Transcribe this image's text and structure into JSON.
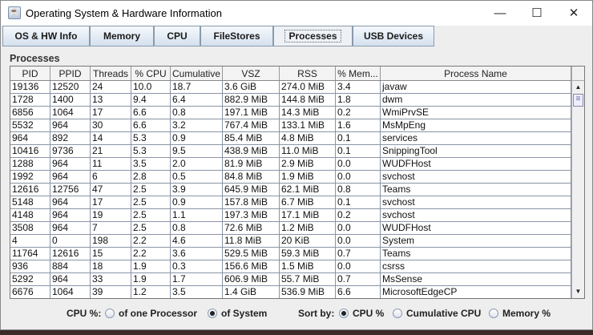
{
  "window": {
    "title": "Operating System & Hardware Information",
    "controls": [
      "—",
      "☐",
      "✕"
    ]
  },
  "tabs": [
    {
      "label": "OS & HW Info"
    },
    {
      "label": "Memory"
    },
    {
      "label": "CPU"
    },
    {
      "label": "FileStores"
    },
    {
      "label": "Processes",
      "selected": true
    },
    {
      "label": "USB Devices"
    }
  ],
  "section_title": "Processes",
  "table": {
    "columns": [
      "PID",
      "PPID",
      "Threads",
      "% CPU",
      "Cumulative",
      "VSZ",
      "RSS",
      "% Mem...",
      "Process Name"
    ],
    "rows": [
      [
        "19136",
        "12520",
        "24",
        "10.0",
        "18.7",
        "3.6 GiB",
        "274.0 MiB",
        "3.4",
        "javaw"
      ],
      [
        "1728",
        "1400",
        "13",
        "9.4",
        "6.4",
        "882.9 MiB",
        "144.8 MiB",
        "1.8",
        "dwm"
      ],
      [
        "6856",
        "1064",
        "17",
        "6.6",
        "0.8",
        "197.1 MiB",
        "14.3 MiB",
        "0.2",
        "WmiPrvSE"
      ],
      [
        "5532",
        "964",
        "30",
        "6.6",
        "3.2",
        "767.4 MiB",
        "133.1 MiB",
        "1.6",
        "MsMpEng"
      ],
      [
        "964",
        "892",
        "14",
        "5.3",
        "0.9",
        "85.4 MiB",
        "4.8 MiB",
        "0.1",
        "services"
      ],
      [
        "10416",
        "9736",
        "21",
        "5.3",
        "9.5",
        "438.9 MiB",
        "11.0 MiB",
        "0.1",
        "SnippingTool"
      ],
      [
        "1288",
        "964",
        "11",
        "3.5",
        "2.0",
        "81.9 MiB",
        "2.9 MiB",
        "0.0",
        "WUDFHost"
      ],
      [
        "1992",
        "964",
        "6",
        "2.8",
        "0.5",
        "84.8 MiB",
        "1.9 MiB",
        "0.0",
        "svchost"
      ],
      [
        "12616",
        "12756",
        "47",
        "2.5",
        "3.9",
        "645.9 MiB",
        "62.1 MiB",
        "0.8",
        "Teams"
      ],
      [
        "5148",
        "964",
        "17",
        "2.5",
        "0.9",
        "157.8 MiB",
        "6.7 MiB",
        "0.1",
        "svchost"
      ],
      [
        "4148",
        "964",
        "19",
        "2.5",
        "1.1",
        "197.3 MiB",
        "17.1 MiB",
        "0.2",
        "svchost"
      ],
      [
        "3508",
        "964",
        "7",
        "2.5",
        "0.8",
        "72.6 MiB",
        "1.2 MiB",
        "0.0",
        "WUDFHost"
      ],
      [
        "4",
        "0",
        "198",
        "2.2",
        "4.6",
        "11.8 MiB",
        "20 KiB",
        "0.0",
        "System"
      ],
      [
        "11764",
        "12616",
        "15",
        "2.2",
        "3.6",
        "529.5 MiB",
        "59.3 MiB",
        "0.7",
        "Teams"
      ],
      [
        "936",
        "884",
        "18",
        "1.9",
        "0.3",
        "156.6 MiB",
        "1.5 MiB",
        "0.0",
        "csrss"
      ],
      [
        "5292",
        "964",
        "33",
        "1.9",
        "1.7",
        "606.9 MiB",
        "55.7 MiB",
        "0.7",
        "MsSense"
      ],
      [
        "6676",
        "1064",
        "39",
        "1.2",
        "3.5",
        "1.4 GiB",
        "536.9 MiB",
        "6.6",
        "MicrosoftEdgeCP"
      ]
    ]
  },
  "options": {
    "cpu_label": "CPU %:",
    "cpu_one": "of one Processor",
    "cpu_system": "of System",
    "cpu_selected": "of System",
    "sort_label": "Sort by:",
    "sort_cpu": "CPU %",
    "sort_cumulative": "Cumulative CPU",
    "sort_memory": "Memory %",
    "sort_selected": "CPU %"
  }
}
